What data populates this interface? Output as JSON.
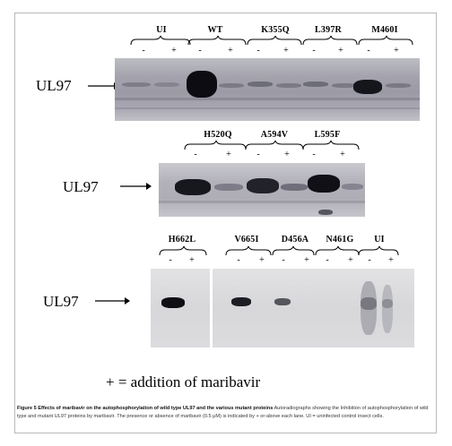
{
  "figure": {
    "panel1": {
      "groups": [
        "UI",
        "WT",
        "K355Q",
        "L397R",
        "M460I"
      ],
      "signs": [
        "-",
        "+",
        "-",
        "+",
        "-",
        "+",
        "-",
        "+",
        "-",
        "+"
      ],
      "row_label": "UL97"
    },
    "panel2": {
      "groups": [
        "H520Q",
        "A594V",
        "L595F"
      ],
      "signs": [
        "-",
        "+",
        "-",
        "+",
        "-",
        "+"
      ],
      "row_label": "UL97"
    },
    "panel3": {
      "groups": [
        "H662L",
        "V665I",
        "D456A",
        "N461G",
        "UI"
      ],
      "signs": [
        "-",
        "+",
        "-",
        "+",
        "-",
        "+",
        "-",
        "+",
        "-",
        "+"
      ],
      "row_label": "UL97"
    },
    "legend": "+ = addition of maribavir"
  },
  "caption": {
    "title": "Figure 5 Effects of maribavir on the autophosphorylation of wild type UL97 and the various mutant proteins",
    "body": "Autoradiographs showing the Inhibition of autophosphorylation of wild type and mutant UL97 proteins by maribavir. The presence or absence of maribavir (0.5 μM) is indicated by + or-above each lane. UI = uninfected control insect cells."
  }
}
